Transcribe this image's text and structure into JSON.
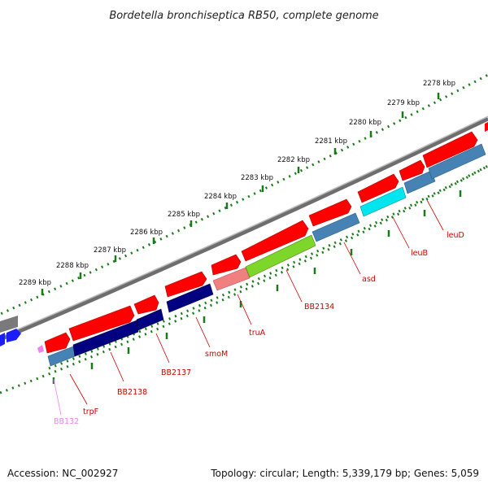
{
  "title": "Bordetella bronchiseptica RB50, complete genome",
  "footer": {
    "accession": "Accession: NC_002927",
    "summary": "Topology: circular; Length: 5,339,179 bp; Genes: 5,059"
  },
  "colors": {
    "forward_cds": "#ff0000",
    "reverse_cds": "#000080",
    "rna_like": "#4682b4",
    "highlight_green": "#7fd62a",
    "highlight_pink": "#f08080",
    "highlight_cyan": "#00e5ee",
    "genome_backbone": "#808080",
    "tick_marks": "#1a7a1a",
    "label_red": "#cc0000",
    "label_pink": "#ee82ee"
  },
  "scale_labels": [
    "2278 kbp",
    "2279 kbp",
    "2280 kbp",
    "2281 kbp",
    "2282 kbp",
    "2283 kbp",
    "2284 kbp",
    "2285 kbp",
    "2286 kbp",
    "2287 kbp",
    "2288 kbp",
    "2289 kbp"
  ],
  "gene_labels": [
    "leuD",
    "leuB",
    "asd",
    "BB2134",
    "truA",
    "smoM",
    "BB2137",
    "BB2138",
    "trpF",
    "BB132"
  ]
}
